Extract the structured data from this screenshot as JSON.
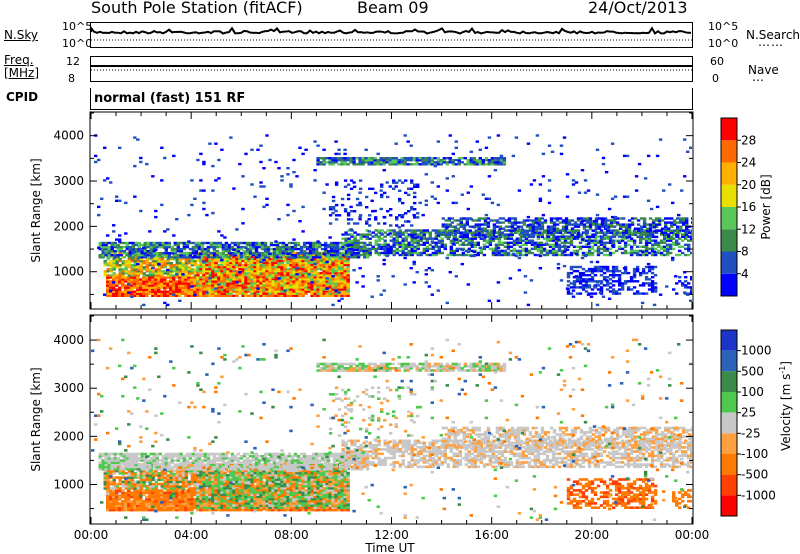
{
  "header": {
    "station": "South Pole Station (fitACF)",
    "beam": "Beam 09",
    "date": "24/Oct/2013"
  },
  "strips": {
    "nsky_label": "N.Sky",
    "nsky_ticks": [
      "10^5",
      "10^0"
    ],
    "nsearch_label": "N.Search",
    "nsearch_ticks": [
      "10^5",
      "10^0"
    ],
    "freq_label_1": "Freq.",
    "freq_label_2": "[MHz]",
    "freq_ticks": [
      "12",
      "8"
    ],
    "nave_label": "Nave",
    "nave_ticks": [
      "60",
      "0"
    ],
    "cpid_label": "CPID",
    "cpid_value": "normal (fast) 151 RF"
  },
  "chart_data": [
    {
      "type": "heatmap",
      "name": "power",
      "ylabel": "Slant Range [km]",
      "yticks": [
        "1000",
        "2000",
        "3000",
        "4000"
      ],
      "ylim": [
        200,
        4500
      ],
      "xticks": [
        "00:00",
        "04:00",
        "08:00",
        "12:00",
        "16:00",
        "20:00",
        "00:00"
      ],
      "xlim": [
        0,
        24
      ],
      "colorbar": {
        "label": "Power [dB]",
        "ticks": [
          "4",
          "8",
          "12",
          "16",
          "20",
          "24",
          "28"
        ],
        "colors": [
          "#0000ff",
          "#1f4fc0",
          "#3a8a4a",
          "#59c759",
          "#e7e000",
          "#ffb000",
          "#ff6a00",
          "#ff0000"
        ]
      }
    },
    {
      "type": "heatmap",
      "name": "velocity",
      "ylabel": "Slant Range [km]",
      "yticks": [
        "1000",
        "2000",
        "3000",
        "4000"
      ],
      "ylim": [
        200,
        4500
      ],
      "xticks": [
        "00:00",
        "04:00",
        "08:00",
        "12:00",
        "16:00",
        "20:00",
        "00:00"
      ],
      "xlabel": "Time UT",
      "xlim": [
        0,
        24
      ],
      "colorbar": {
        "label_main": "Velocity",
        "label_unit": "[m s",
        "label_exp": "-1",
        "label_close": "]",
        "ticks": [
          "1000",
          "500",
          "100",
          "25",
          "-25",
          "-100",
          "-500",
          "-1000"
        ],
        "colors": [
          "#1c35c8",
          "#2c62b8",
          "#3a8a4a",
          "#4ec94e",
          "#c8c8c8",
          "#ffa040",
          "#ff7a00",
          "#ff4000",
          "#ff0000"
        ]
      }
    }
  ]
}
